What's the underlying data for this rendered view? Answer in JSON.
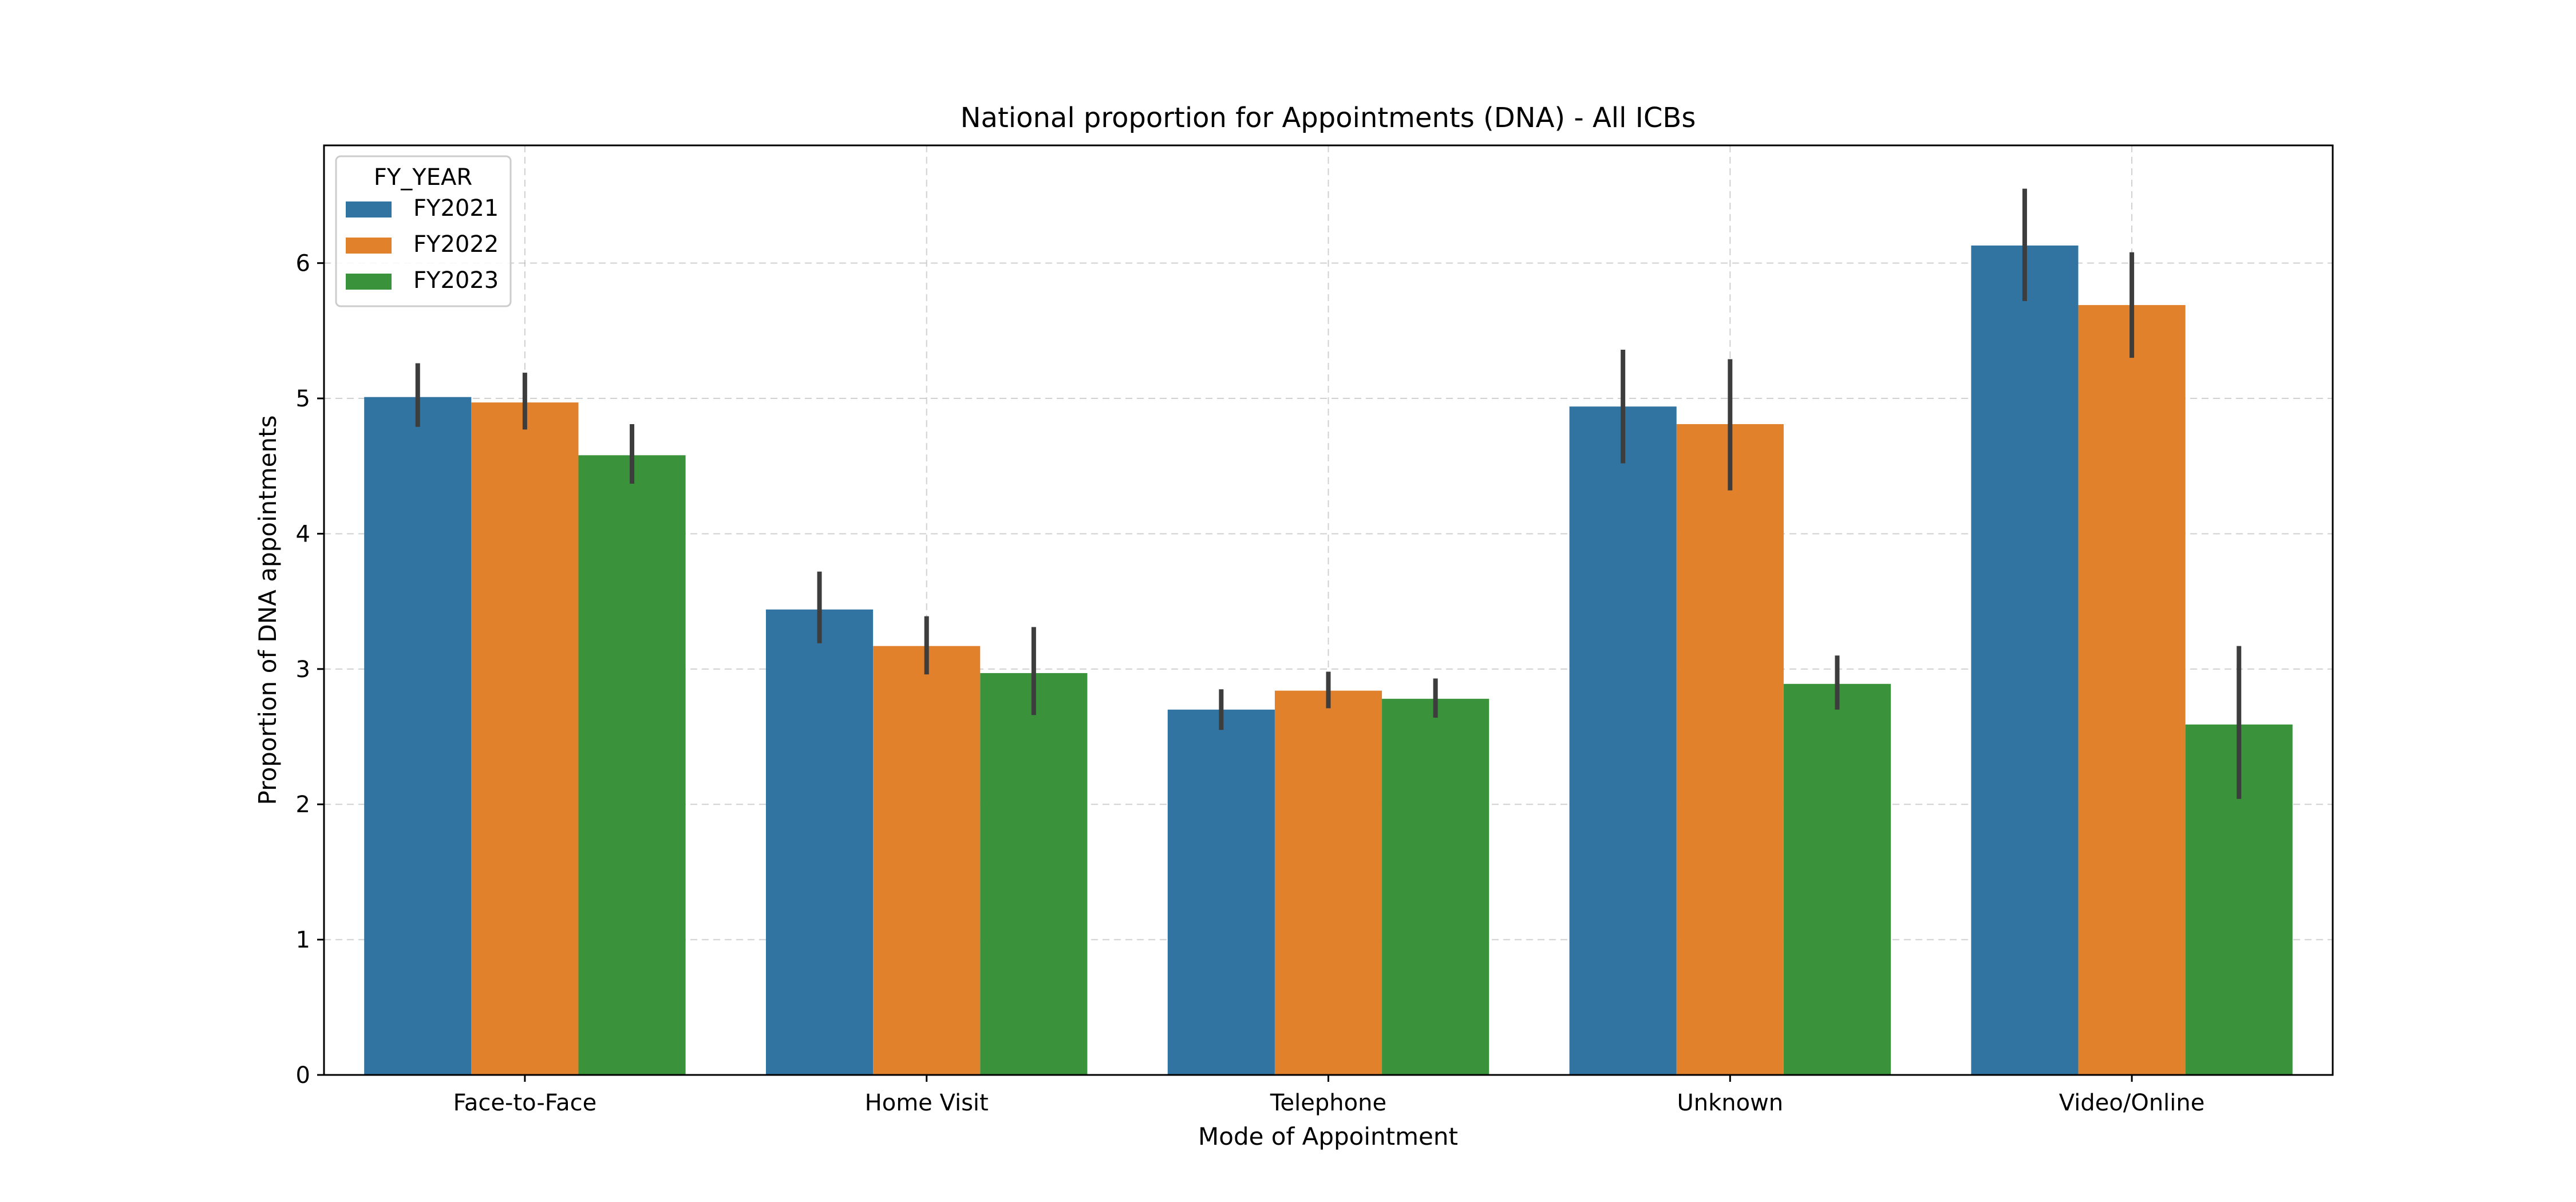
{
  "chart_data": {
    "type": "bar",
    "title": "National proportion for Appointments (DNA) - All ICBs",
    "xlabel": "Mode of Appointment",
    "ylabel": "Proportion of DNA appointments",
    "categories": [
      "Face-to-Face",
      "Home Visit",
      "Telephone",
      "Unknown",
      "Video/Online"
    ],
    "ylim": [
      0,
      6.87
    ],
    "yticks": [
      "0",
      "1",
      "2",
      "3",
      "4",
      "5",
      "6"
    ],
    "grid": true,
    "legend": {
      "title": "FY_YEAR",
      "placement": "top-left"
    },
    "series": [
      {
        "name": "FY2021",
        "color": "#3274a1",
        "values": [
          5.01,
          3.44,
          2.7,
          4.94,
          6.13
        ],
        "err_low": [
          4.79,
          3.19,
          2.55,
          4.52,
          5.72
        ],
        "err_high": [
          5.26,
          3.72,
          2.85,
          5.36,
          6.55
        ]
      },
      {
        "name": "FY2022",
        "color": "#e1812c",
        "values": [
          4.97,
          3.17,
          2.84,
          4.81,
          5.69
        ],
        "err_low": [
          4.77,
          2.96,
          2.71,
          4.32,
          5.3
        ],
        "err_high": [
          5.19,
          3.39,
          2.98,
          5.29,
          6.08
        ]
      },
      {
        "name": "FY2023",
        "color": "#3a923a",
        "values": [
          4.58,
          2.97,
          2.78,
          2.89,
          2.59
        ],
        "err_low": [
          4.37,
          2.66,
          2.64,
          2.7,
          2.04
        ],
        "err_high": [
          4.81,
          3.31,
          2.93,
          3.1,
          3.17
        ]
      }
    ]
  }
}
